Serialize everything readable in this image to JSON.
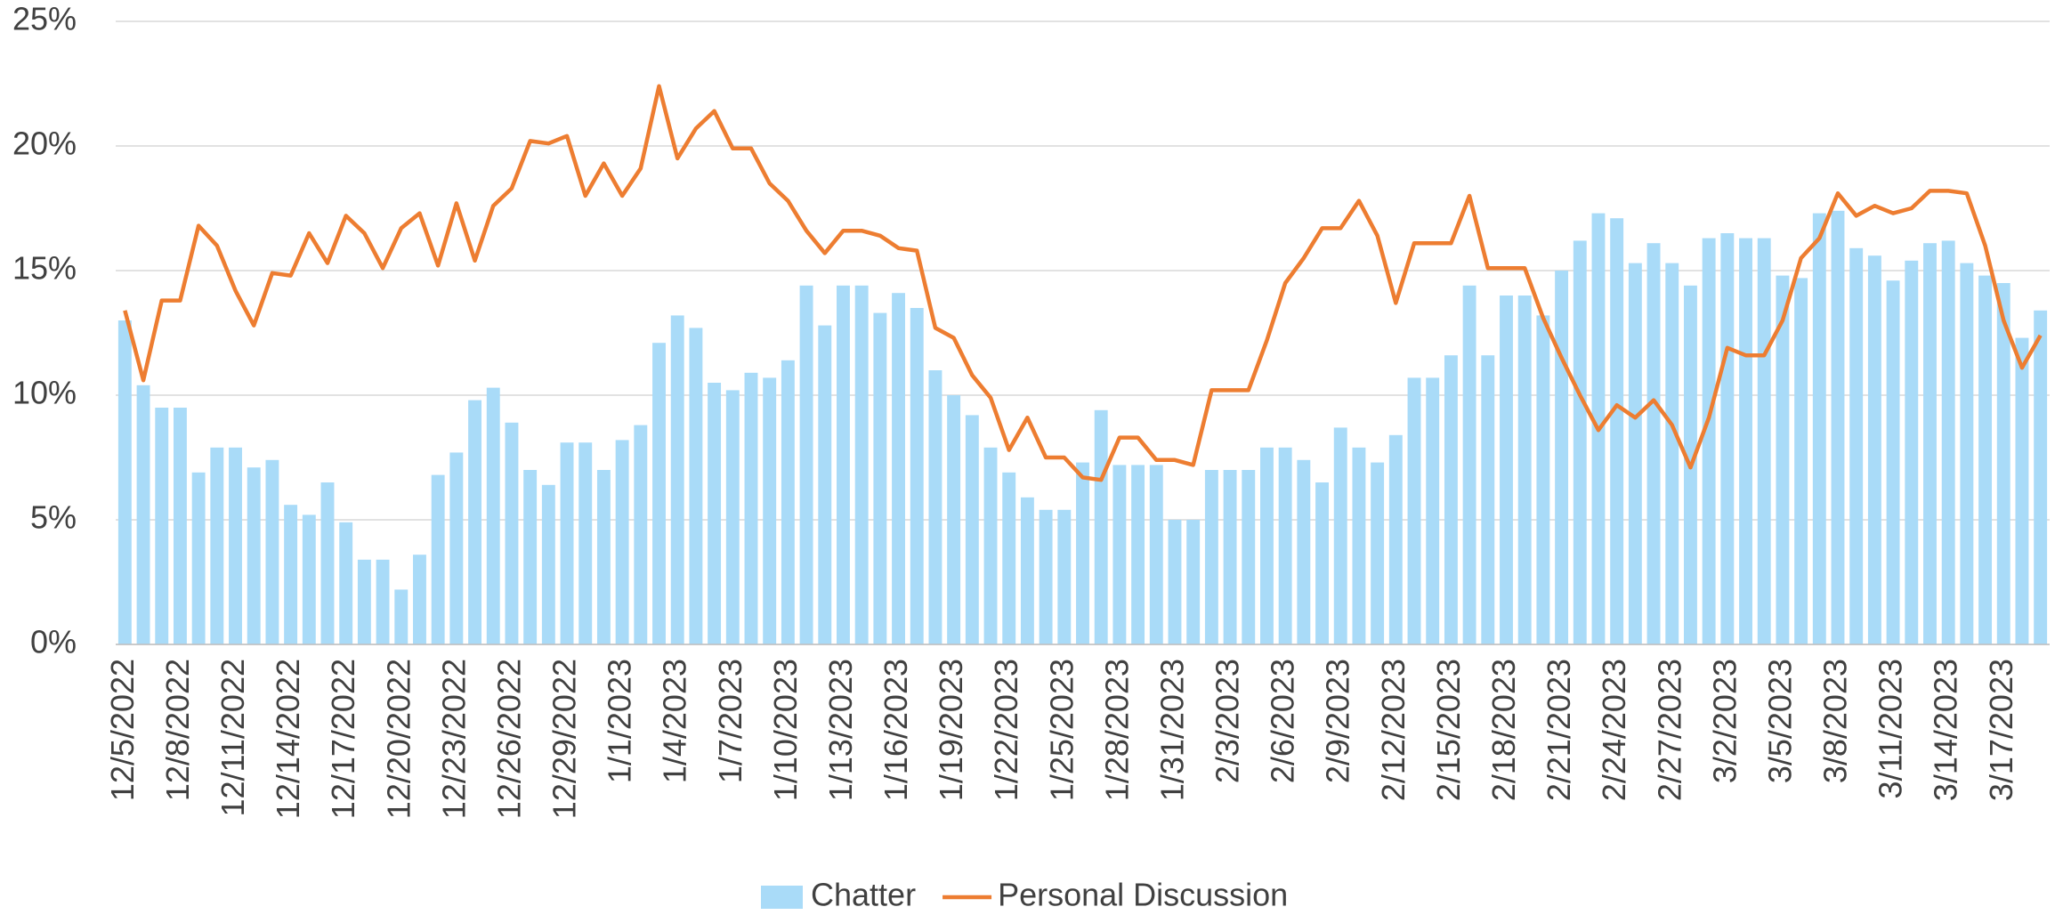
{
  "chart_data": {
    "type": "bar_line",
    "categories": [
      "12/5/2022",
      null,
      null,
      "12/8/2022",
      null,
      null,
      "12/11/2022",
      null,
      null,
      "12/14/2022",
      null,
      null,
      "12/17/2022",
      null,
      null,
      "12/20/2022",
      null,
      null,
      "12/23/2022",
      null,
      null,
      "12/26/2022",
      null,
      null,
      "12/29/2022",
      null,
      null,
      "1/1/2023",
      null,
      null,
      "1/4/2023",
      null,
      null,
      "1/7/2023",
      null,
      null,
      "1/10/2023",
      null,
      null,
      "1/13/2023",
      null,
      null,
      "1/16/2023",
      null,
      null,
      "1/19/2023",
      null,
      null,
      "1/22/2023",
      null,
      null,
      "1/25/2023",
      null,
      null,
      "1/28/2023",
      null,
      null,
      "1/31/2023",
      null,
      null,
      "2/3/2023",
      null,
      null,
      "2/6/2023",
      null,
      null,
      "2/9/2023",
      null,
      null,
      "2/12/2023",
      null,
      null,
      "2/15/2023",
      null,
      null,
      "2/18/2023",
      null,
      null,
      "2/21/2023",
      null,
      null,
      "2/24/2023",
      null,
      null,
      "2/27/2023",
      null,
      null,
      "3/2/2023",
      null,
      null,
      "3/5/2023",
      null,
      null,
      "3/8/2023",
      null,
      null,
      "3/11/2023",
      null,
      null,
      "3/14/2023",
      null,
      null,
      "3/17/2023",
      null,
      null
    ],
    "series": [
      {
        "name": "Chatter",
        "kind": "bar",
        "color": "#a9dbf8",
        "values": [
          13.0,
          10.4,
          9.5,
          9.5,
          6.9,
          7.9,
          7.9,
          7.1,
          7.4,
          5.6,
          5.2,
          6.5,
          4.9,
          3.4,
          3.4,
          2.2,
          3.6,
          6.8,
          7.7,
          9.8,
          10.3,
          8.9,
          7.0,
          6.4,
          8.1,
          8.1,
          7.0,
          8.2,
          8.8,
          12.1,
          13.2,
          12.7,
          10.5,
          10.2,
          10.9,
          10.7,
          11.4,
          14.4,
          12.8,
          14.4,
          14.4,
          13.3,
          14.1,
          13.5,
          11.0,
          10.0,
          9.2,
          7.9,
          6.9,
          5.9,
          5.4,
          5.4,
          7.3,
          9.4,
          7.2,
          7.2,
          7.2,
          5.0,
          5.0,
          7.0,
          7.0,
          7.0,
          7.9,
          7.9,
          7.4,
          6.5,
          8.7,
          7.9,
          7.3,
          8.4,
          10.7,
          10.7,
          11.6,
          14.4,
          11.6,
          14.0,
          14.0,
          13.2,
          15.0,
          16.2,
          17.3,
          17.1,
          15.3,
          16.1,
          15.3,
          14.4,
          16.3,
          16.5,
          16.3,
          16.3,
          14.8,
          14.7,
          17.3,
          17.4,
          15.9,
          15.6,
          14.6,
          15.4,
          16.1,
          16.2,
          15.3,
          14.8,
          14.5,
          12.3,
          13.4
        ]
      },
      {
        "name": "Personal Discussion",
        "kind": "line",
        "color": "#ed7d31",
        "values": [
          13.4,
          10.6,
          13.8,
          13.8,
          16.8,
          16.0,
          14.2,
          12.8,
          14.9,
          14.8,
          16.5,
          15.3,
          17.2,
          16.5,
          15.1,
          16.7,
          17.3,
          15.2,
          17.7,
          15.4,
          17.6,
          18.3,
          20.2,
          20.1,
          20.4,
          18.0,
          19.3,
          18.0,
          19.1,
          22.4,
          19.5,
          20.7,
          21.4,
          19.9,
          19.9,
          18.5,
          17.8,
          16.6,
          15.7,
          16.6,
          16.6,
          16.4,
          15.9,
          15.8,
          12.7,
          12.3,
          10.8,
          9.9,
          7.8,
          9.1,
          7.5,
          7.5,
          6.7,
          6.6,
          8.3,
          8.3,
          7.4,
          7.4,
          7.2,
          10.2,
          10.2,
          10.2,
          12.2,
          14.5,
          15.5,
          16.7,
          16.7,
          17.8,
          16.4,
          13.7,
          16.1,
          16.1,
          16.1,
          18.0,
          15.1,
          15.1,
          15.1,
          13.1,
          11.5,
          10.0,
          8.6,
          9.6,
          9.1,
          9.8,
          8.8,
          7.1,
          9.1,
          11.9,
          11.6,
          11.6,
          13.0,
          15.5,
          16.3,
          18.1,
          17.2,
          17.6,
          17.3,
          17.5,
          18.2,
          18.2,
          18.1,
          16.0,
          13.0,
          11.1,
          12.4
        ]
      }
    ],
    "ylim": [
      0,
      25
    ],
    "yticks": [
      {
        "value": 0,
        "label": "0%"
      },
      {
        "value": 5,
        "label": "5%"
      },
      {
        "value": 10,
        "label": "10%"
      },
      {
        "value": 15,
        "label": "15%"
      },
      {
        "value": 20,
        "label": "20%"
      },
      {
        "value": 25,
        "label": "25%"
      }
    ],
    "grid": true,
    "legend": "bottom"
  }
}
